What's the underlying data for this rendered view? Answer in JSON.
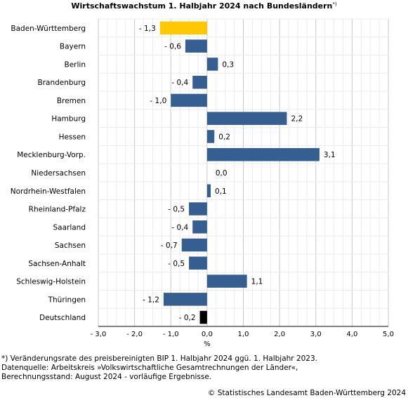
{
  "chart_data": {
    "type": "bar",
    "orientation": "horizontal",
    "title": "Wirtschaftswachstum 1. Halbjahr 2024 nach Bundesländern",
    "title_marker": "*)",
    "categories": [
      "Baden-Württemberg",
      "Bayern",
      "Berlin",
      "Brandenburg",
      "Bremen",
      "Hamburg",
      "Hessen",
      "Mecklenburg-Vorp.",
      "Niedersachsen",
      "Nordrhein-Westfalen",
      "Rheinland-Pfalz",
      "Saarland",
      "Sachsen",
      "Sachsen-Anhalt",
      "Schleswig-Holstein",
      "Thüringen",
      "Deutschland"
    ],
    "values": [
      -1.3,
      -0.6,
      0.3,
      -0.4,
      -1.0,
      2.2,
      0.2,
      3.1,
      0.0,
      0.1,
      -0.5,
      -0.4,
      -0.7,
      -0.5,
      1.1,
      -1.2,
      -0.2
    ],
    "value_labels": [
      "- 1,3",
      "- 0,6",
      "0,3",
      "- 0,4",
      "- 1,0",
      "2,2",
      "0,2",
      "3,1",
      "0,0",
      "0,1",
      "- 0,5",
      "- 0,4",
      "- 0,7",
      "- 0,5",
      "1,1",
      "- 1,2",
      "- 0,2"
    ],
    "xlim": [
      -3.0,
      5.0
    ],
    "x_ticks": [
      -3.0,
      -2.0,
      -1.0,
      0.0,
      1.0,
      2.0,
      3.0,
      4.0,
      5.0
    ],
    "x_tick_labels": [
      "- 3,0",
      "- 2,0",
      "- 1,0",
      "0,0",
      "1,0",
      "2,0",
      "3,0",
      "4,0",
      "5,0"
    ],
    "xlabel": "%",
    "grid": true,
    "colors": {
      "default": "#365f91",
      "Baden-Württemberg": "#ffc800",
      "Deutschland": "#000000",
      "grid": "#dcdcdc"
    }
  },
  "footnotes": [
    "*) Veränderungsrate des preisbereinigten BIP 1. Halbjahr 2024 ggü. 1. Halbjahr 2023.",
    "Datenquelle: Arbeitskreis »Volkswirtschaftliche Gesamtrechnungen der Länder«,",
    "Berechnungsstand: August 2024 - vorläufige Ergebnisse."
  ],
  "copyright": "© Statistisches Landesamt Baden-Württemberg 2024"
}
